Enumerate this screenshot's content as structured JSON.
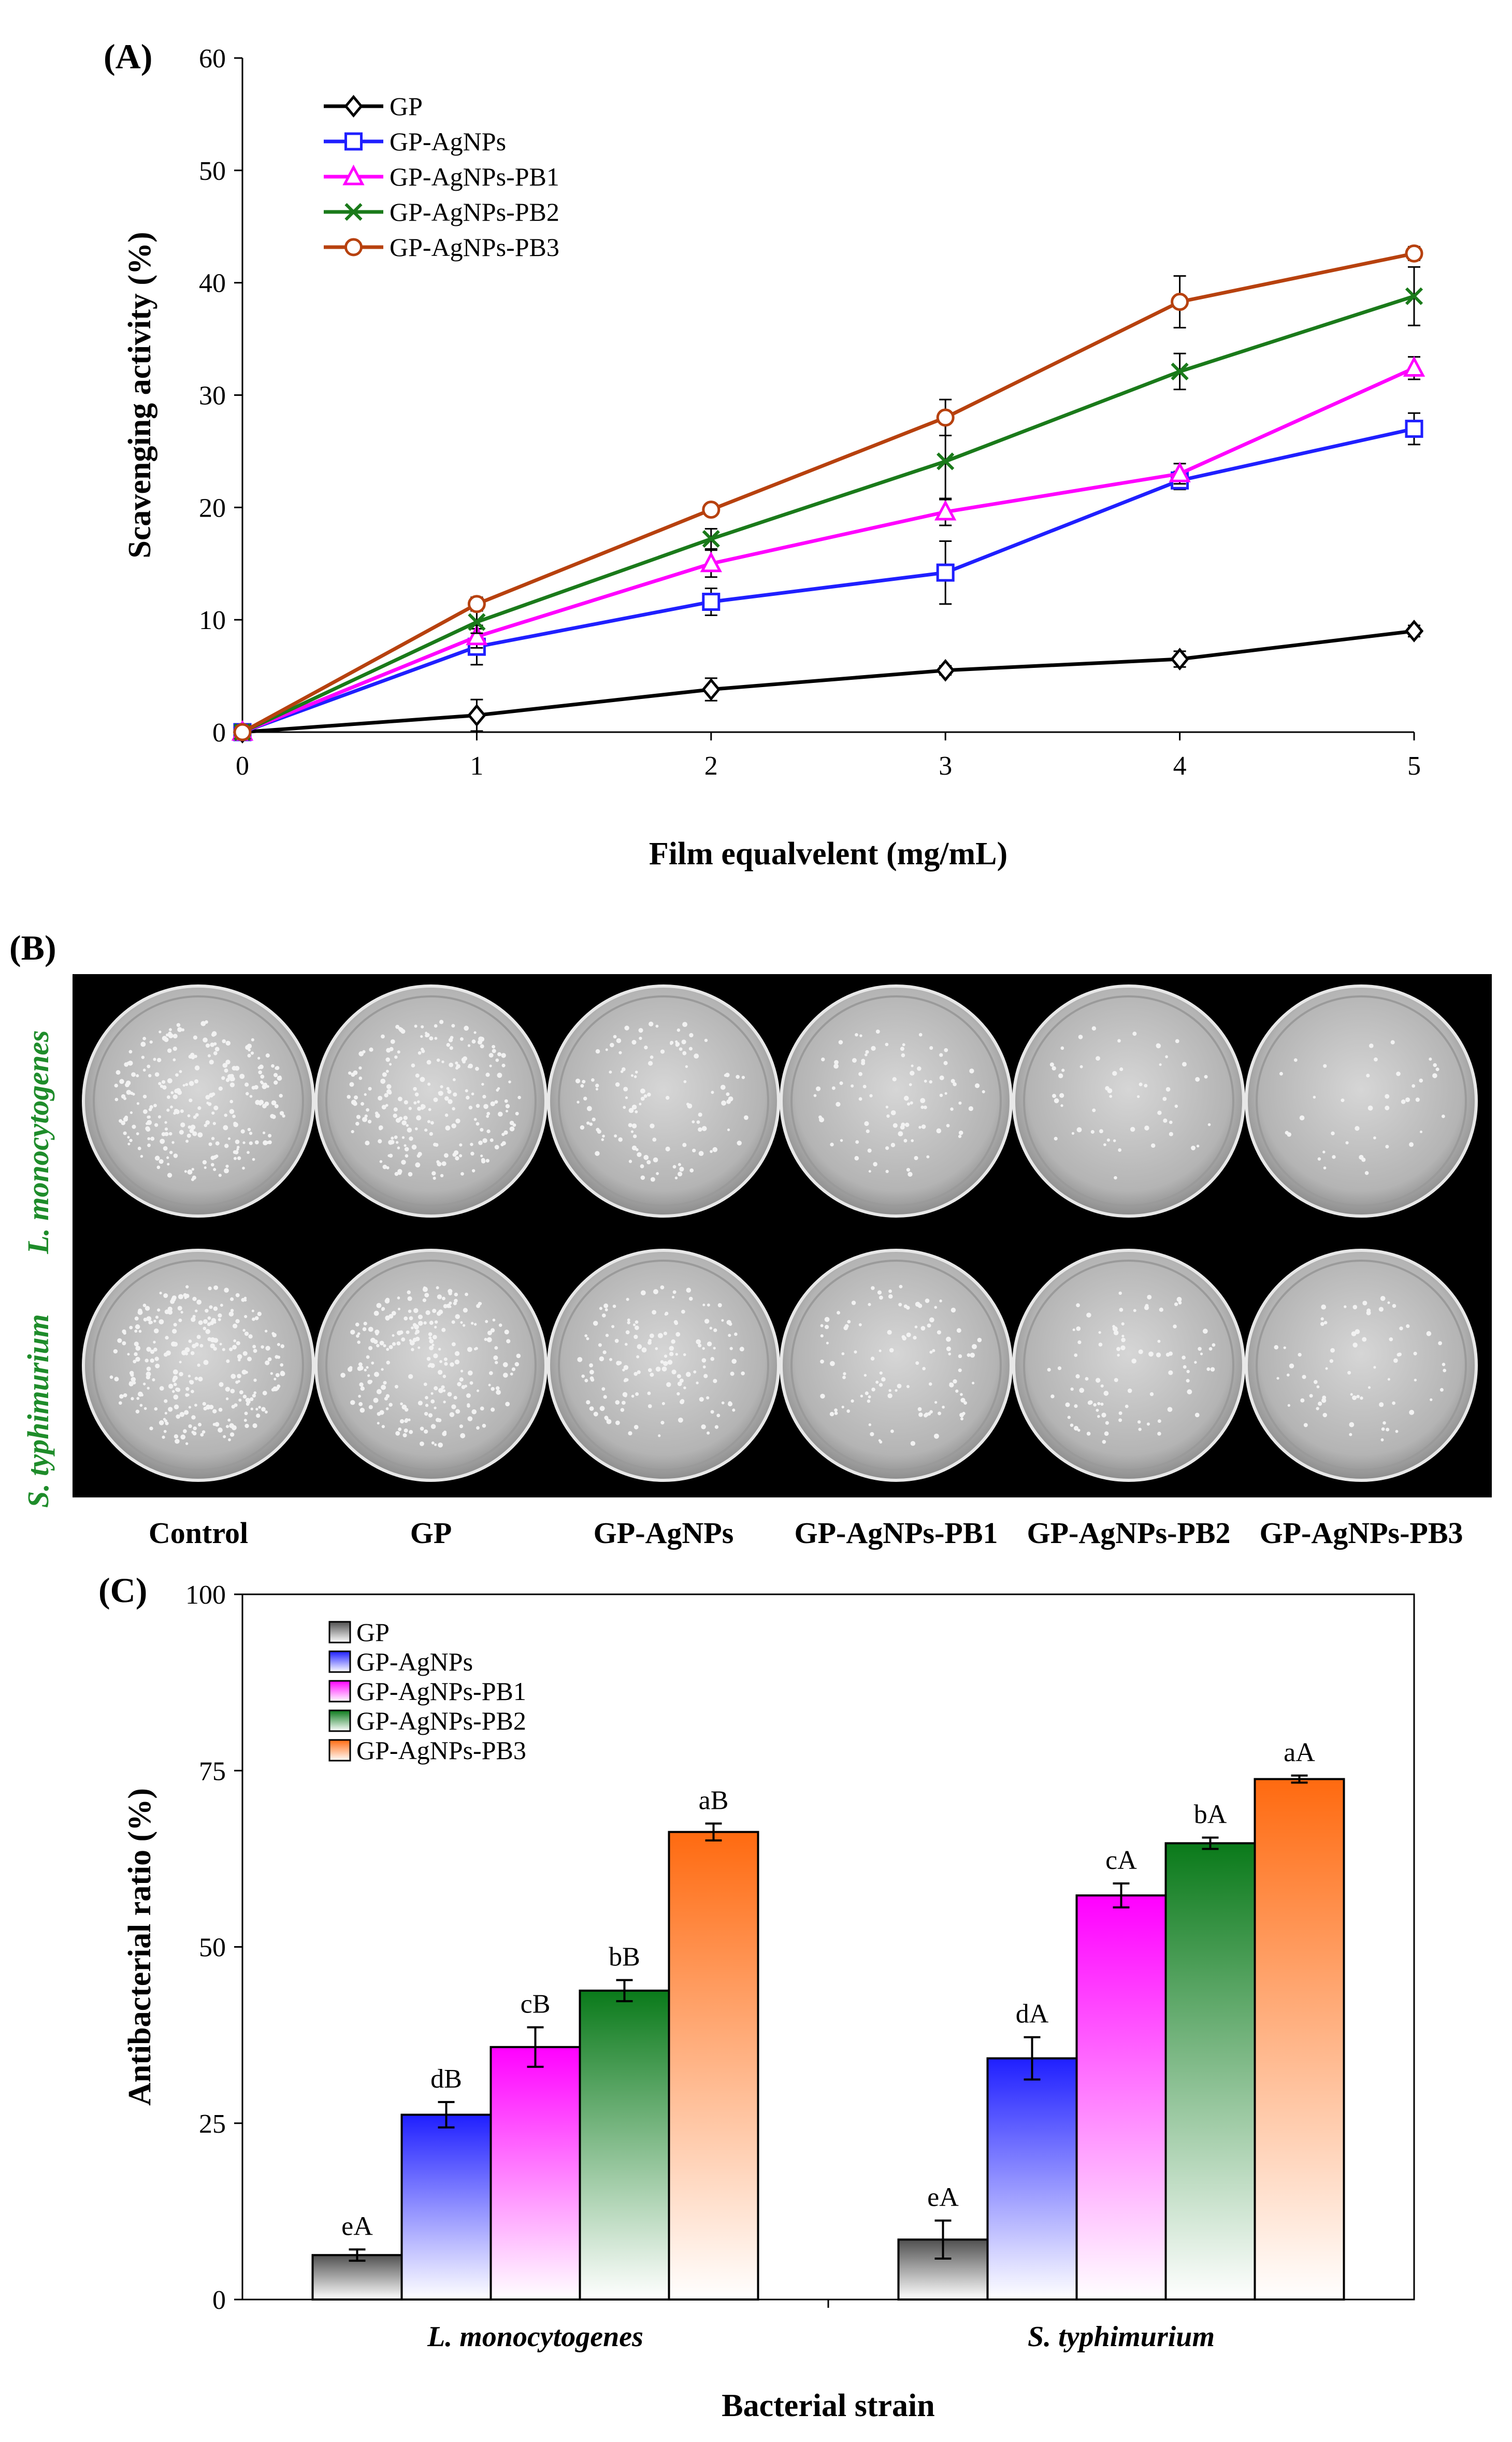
{
  "panel_labels": {
    "a": "(A)",
    "b": "(B)",
    "c": "(C)"
  },
  "chart_data": [
    {
      "type": "line",
      "panel": "(A)",
      "xlabel": "Film equalvelent (mg/mL)",
      "ylabel": "Scavenging activity (%)",
      "x": [
        0,
        1,
        2,
        3,
        4,
        5
      ],
      "xlim": [
        0,
        5
      ],
      "ylim": [
        0,
        60
      ],
      "xticks": [
        0,
        1,
        2,
        3,
        4,
        5
      ],
      "yticks": [
        0,
        10,
        20,
        30,
        40,
        50,
        60
      ],
      "legend_position": "top-left",
      "series": [
        {
          "name": "GP",
          "color": "#000000",
          "marker": "diamond",
          "values": [
            0,
            1.5,
            3.8,
            5.5,
            6.5,
            9.0
          ],
          "errors": [
            0,
            1.4,
            1.0,
            0.4,
            0.7,
            0.5
          ]
        },
        {
          "name": "GP-AgNPs",
          "color": "#1f1fff",
          "marker": "square",
          "values": [
            0,
            7.6,
            11.6,
            14.2,
            22.4,
            27.0
          ],
          "errors": [
            0,
            1.6,
            1.2,
            2.8,
            0.8,
            1.4
          ]
        },
        {
          "name": "GP-AgNPs-PB1",
          "color": "#ff00ff",
          "marker": "triangle",
          "values": [
            0,
            8.5,
            15.0,
            19.6,
            23.0,
            32.4
          ],
          "errors": [
            0,
            1.0,
            1.2,
            1.2,
            0.9,
            1.0
          ]
        },
        {
          "name": "GP-AgNPs-PB2",
          "color": "#1a7a1a",
          "marker": "x",
          "values": [
            0,
            9.8,
            17.2,
            24.1,
            32.1,
            38.8
          ],
          "errors": [
            0,
            1.0,
            0.9,
            3.4,
            1.6,
            2.6
          ]
        },
        {
          "name": "GP-AgNPs-PB3",
          "color": "#b7410e",
          "marker": "circle",
          "values": [
            0,
            11.4,
            19.8,
            28.0,
            38.3,
            42.6
          ],
          "errors": [
            0,
            0.6,
            0.5,
            1.6,
            2.3,
            0.6
          ]
        }
      ]
    },
    {
      "type": "bar",
      "panel": "(C)",
      "xlabel": "Bacterial strain",
      "ylabel": "Antibacterial ratio (%)",
      "categories": [
        "L. monocytogenes",
        "S. typhimurium"
      ],
      "ylim": [
        0,
        100
      ],
      "yticks": [
        0,
        25,
        50,
        75,
        100
      ],
      "legend_position": "top-left",
      "series": [
        {
          "name": "GP",
          "color": "#505050",
          "values": [
            6.3,
            8.5
          ],
          "errors": [
            0.8,
            2.7
          ],
          "labels": [
            "eA",
            "eA"
          ]
        },
        {
          "name": "GP-AgNPs",
          "color": "#1f1fff",
          "values": [
            26.2,
            34.2
          ],
          "errors": [
            1.8,
            3.0
          ],
          "labels": [
            "dB",
            "dA"
          ]
        },
        {
          "name": "GP-AgNPs-PB1",
          "color": "#ff00ff",
          "values": [
            35.8,
            57.3
          ],
          "errors": [
            2.8,
            1.7
          ],
          "labels": [
            "cB",
            "cA"
          ]
        },
        {
          "name": "GP-AgNPs-PB2",
          "color": "#0a7a1a",
          "values": [
            43.8,
            64.7
          ],
          "errors": [
            1.5,
            0.8
          ],
          "labels": [
            "bB",
            "bA"
          ]
        },
        {
          "name": "GP-AgNPs-PB3",
          "color": "#ff6a10",
          "values": [
            66.3,
            73.8
          ],
          "errors": [
            1.2,
            0.5
          ],
          "labels": [
            "aB",
            "aA"
          ]
        }
      ]
    }
  ],
  "panel_b": {
    "row_labels": [
      "L. monocytogenes",
      "S. typhimurium"
    ],
    "column_labels": [
      "Control",
      "GP",
      "GP-AgNPs",
      "GP-AgNPs-PB1",
      "GP-AgNPs-PB2",
      "GP-AgNPs-PB3"
    ],
    "colony_counts": [
      [
        260,
        230,
        120,
        90,
        55,
        40
      ],
      [
        280,
        240,
        150,
        110,
        90,
        70
      ]
    ]
  }
}
